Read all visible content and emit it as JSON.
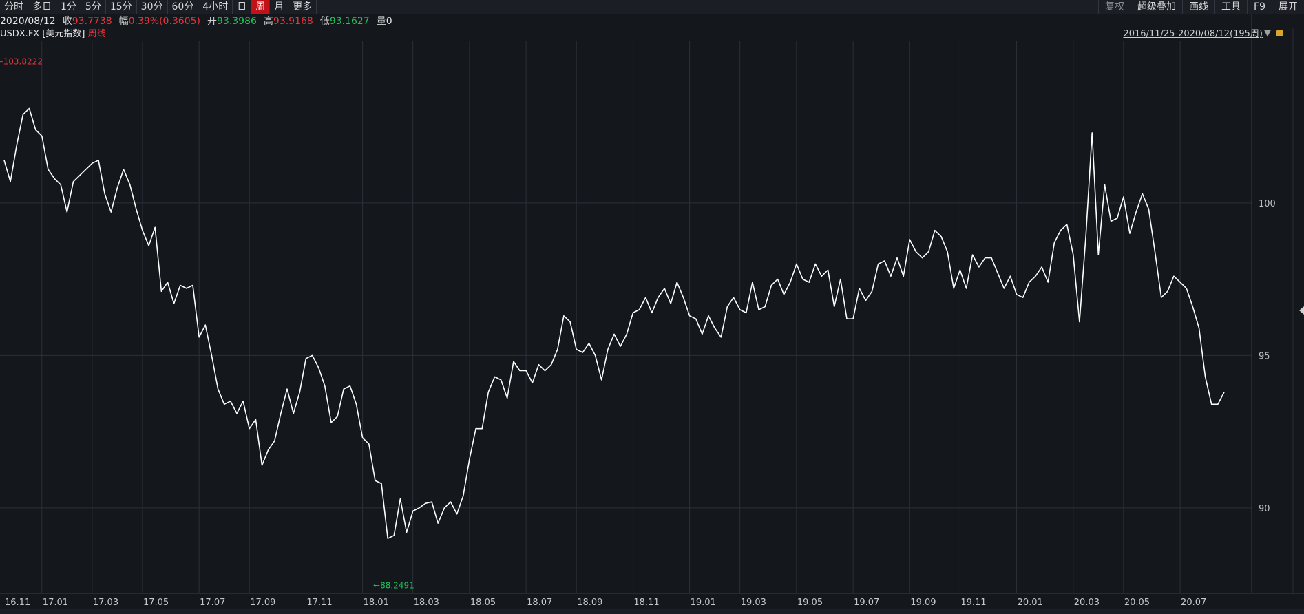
{
  "toolbar": {
    "tabs": [
      "分时",
      "多日",
      "1分",
      "5分",
      "15分",
      "30分",
      "60分",
      "4小时",
      "日",
      "周",
      "月",
      "更多"
    ],
    "active_tab": "周",
    "right_tools": [
      "复权",
      "超级叠加",
      "画线",
      "工具",
      "F9",
      "展开"
    ]
  },
  "quote": {
    "date": "2020/08/12",
    "close_label": "收",
    "close": "93.7738",
    "change_label": "幅",
    "change": "0.39%(0.3605)",
    "open_label": "开",
    "open": "93.3986",
    "high_label": "高",
    "high": "93.9168",
    "low_label": "低",
    "low": "93.1627",
    "volume_label": "量",
    "volume": "0"
  },
  "symbol": {
    "code": "USDX.FX",
    "name": "[美元指数]",
    "period": "周线",
    "range": "2016/11/25-2020/08/12(195周)"
  },
  "colors": {
    "background": "#14171c",
    "line": "#ffffff",
    "up": "#e8353b",
    "down": "#1fc15a",
    "grid": "#2c3038",
    "active_tab": "#c1121a"
  },
  "chart_data": {
    "type": "line",
    "title": "",
    "xlabel": "",
    "ylabel": "",
    "grid": true,
    "ylim": [
      87.2,
      105.3
    ],
    "yticks": [
      90,
      95,
      100
    ],
    "x_tick_labels": [
      "16.11",
      "17.01",
      "17.03",
      "17.05",
      "17.07",
      "17.09",
      "17.11",
      "18.01",
      "18.03",
      "18.05",
      "18.07",
      "18.09",
      "18.11",
      "19.01",
      "19.03",
      "19.05",
      "19.07",
      "19.09",
      "19.11",
      "20.01",
      "20.03",
      "20.05",
      "20.07"
    ],
    "x_tick_index": [
      0,
      6,
      14,
      22,
      31,
      39,
      48,
      57,
      65,
      74,
      83,
      91,
      100,
      109,
      117,
      126,
      135,
      144,
      152,
      161,
      170,
      178,
      187
    ],
    "annotations": [
      {
        "text": "103.8222",
        "index": 4,
        "value": 103.8222,
        "color": "#e8353b",
        "kind": "high"
      },
      {
        "text": "88.2491",
        "index": 60,
        "value": 88.2491,
        "color": "#1fc15a",
        "kind": "low"
      }
    ],
    "series": [
      {
        "values": [
          101.4,
          100.7,
          101.9,
          102.9,
          103.1,
          102.4,
          102.2,
          101.1,
          100.8,
          100.6,
          99.7,
          100.7,
          100.9,
          101.1,
          101.3,
          101.4,
          100.3,
          99.7,
          100.5,
          101.1,
          100.6,
          99.8,
          99.1,
          98.6,
          99.2,
          97.1,
          97.4,
          96.7,
          97.3,
          97.2,
          97.3,
          95.6,
          96.0,
          95.0,
          93.9,
          93.4,
          93.5,
          93.1,
          93.5,
          92.6,
          92.9,
          91.4,
          91.9,
          92.2,
          93.1,
          93.9,
          93.1,
          93.8,
          94.9,
          95.0,
          94.6,
          94.0,
          92.8,
          93.0,
          93.9,
          94.0,
          93.4,
          92.3,
          92.1,
          90.9,
          90.8,
          89.0,
          89.1,
          90.3,
          89.2,
          89.9,
          90.0,
          90.15,
          90.2,
          89.5,
          90.0,
          90.2,
          89.8,
          90.4,
          91.6,
          92.6,
          92.6,
          93.8,
          94.3,
          94.2,
          93.6,
          94.8,
          94.5,
          94.5,
          94.1,
          94.7,
          94.5,
          94.7,
          95.2,
          96.3,
          96.1,
          95.2,
          95.1,
          95.4,
          95.0,
          94.2,
          95.2,
          95.7,
          95.3,
          95.7,
          96.4,
          96.5,
          96.9,
          96.4,
          96.9,
          97.2,
          96.7,
          97.4,
          96.9,
          96.3,
          96.2,
          95.7,
          96.3,
          95.9,
          95.6,
          96.6,
          96.9,
          96.5,
          96.4,
          97.4,
          96.5,
          96.6,
          97.3,
          97.5,
          97.0,
          97.4,
          98.0,
          97.5,
          97.4,
          98.0,
          97.6,
          97.8,
          96.6,
          97.5,
          96.2,
          96.2,
          97.2,
          96.8,
          97.1,
          98.0,
          98.1,
          97.6,
          98.2,
          97.6,
          98.8,
          98.4,
          98.2,
          98.4,
          99.1,
          98.9,
          98.4,
          97.2,
          97.8,
          97.2,
          98.3,
          97.9,
          98.2,
          98.2,
          97.7,
          97.2,
          97.6,
          97.0,
          96.9,
          97.4,
          97.6,
          97.9,
          97.4,
          98.7,
          99.1,
          99.3,
          98.3,
          96.1,
          98.9,
          102.3,
          98.3,
          100.6,
          99.4,
          99.5,
          100.2,
          99.0,
          99.7,
          100.3,
          99.8,
          98.4,
          96.9,
          97.1,
          97.6,
          97.4,
          97.2,
          96.6,
          95.9,
          94.3,
          93.4,
          93.4,
          93.8
        ]
      }
    ]
  }
}
